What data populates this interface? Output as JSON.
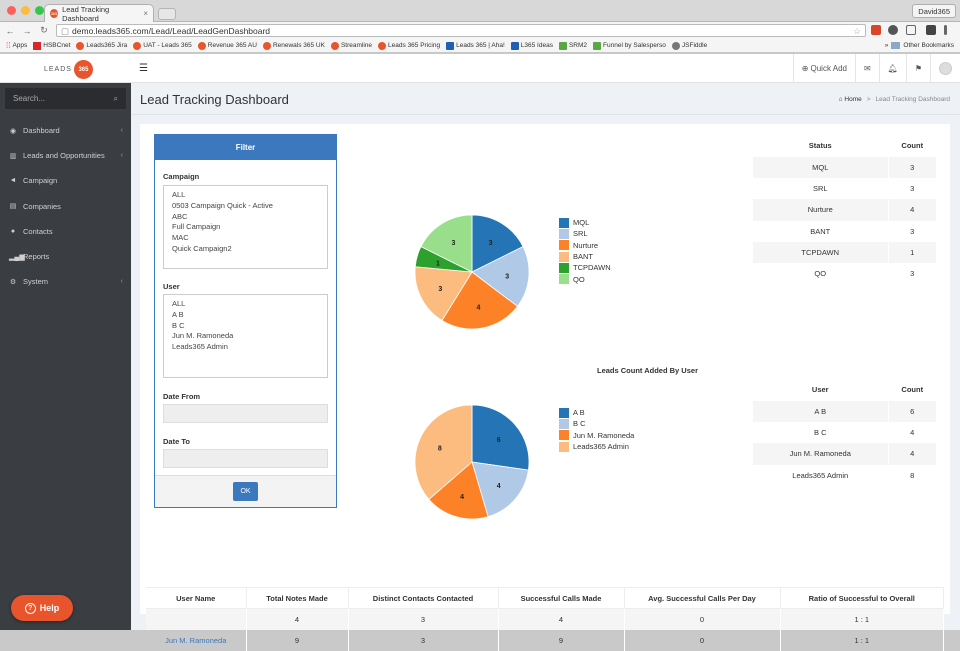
{
  "browser": {
    "tab_title": "Lead Tracking Dashboard",
    "tab_close": "×",
    "favicon_text": "365",
    "profile": "David365",
    "url": "demo.leads365.com/Lead/Lead/LeadGenDashboard",
    "bookmarks": [
      "Apps",
      "HSBCnet",
      "Leads365 Jira",
      "UAT - Leads 365",
      "Revenue 365 AU",
      "Renewals 365 UK",
      "Streamline",
      "Leads 365 Pricing",
      "Leads 365 | Aha!",
      "L365 Ideas",
      "SRM2",
      "Funnel by Salesperso",
      "JSFiddle"
    ],
    "bookmarks_more": "»",
    "other_bookmarks": "Other Bookmarks",
    "colors": {
      "close": "#fc605c",
      "minimize": "#fdbc40",
      "maximize": "#34c84a"
    }
  },
  "header": {
    "logo_text": "LEADS",
    "logo_number": "365",
    "menu_icon": "☰",
    "quick_add": "Quick Add",
    "icons": [
      "plus-circle-icon",
      "envelope-icon",
      "bell-icon",
      "flag-icon",
      "user-avatar-icon"
    ]
  },
  "sidebar": {
    "search_placeholder": "Search...",
    "items": [
      {
        "label": "Dashboard",
        "icon": "palette-icon",
        "has_chevron": true
      },
      {
        "label": "Leads and Opportunities",
        "icon": "bar-chart-icon",
        "has_chevron": true
      },
      {
        "label": "Campaign",
        "icon": "bullhorn-icon",
        "has_chevron": false
      },
      {
        "label": "Companies",
        "icon": "building-icon",
        "has_chevron": false
      },
      {
        "label": "Contacts",
        "icon": "users-icon",
        "has_chevron": false
      },
      {
        "label": "Reports",
        "icon": "signal-icon",
        "has_chevron": false
      },
      {
        "label": "System",
        "icon": "cogs-icon",
        "has_chevron": true
      }
    ],
    "chevron": "‹"
  },
  "help": {
    "label": "Help",
    "icon_text": "?"
  },
  "page": {
    "title": "Lead Tracking Dashboard",
    "breadcrumb_home": "Home",
    "breadcrumb_sep": ">",
    "breadcrumb_current": "Lead Tracking Dashboard"
  },
  "filter": {
    "title": "Filter",
    "campaign_label": "Campaign",
    "campaigns": [
      "ALL",
      "0503 Campaign Quick - Active",
      "ABC",
      "Full Campaign",
      "MAC",
      "Quick Campaign2"
    ],
    "user_label": "User",
    "users": [
      "ALL",
      "A B",
      "B C",
      "Jun M. Ramoneda",
      "Leads365 Admin"
    ],
    "date_from_label": "Date From",
    "date_to_label": "Date To",
    "date_from_value": "",
    "date_to_value": "",
    "ok_label": "OK"
  },
  "status_table": {
    "headers": [
      "Status",
      "Count"
    ],
    "rows": [
      [
        "MQL",
        "3"
      ],
      [
        "SRL",
        "3"
      ],
      [
        "Nurture",
        "4"
      ],
      [
        "BANT",
        "3"
      ],
      [
        "TCPDAWN",
        "1"
      ],
      [
        "QO",
        "3"
      ]
    ]
  },
  "user_table": {
    "title": "Leads Count Added By User",
    "headers": [
      "User",
      "Count"
    ],
    "rows": [
      [
        "A B",
        "6"
      ],
      [
        "B C",
        "4"
      ],
      [
        "Jun M. Ramoneda",
        "4"
      ],
      [
        "Leads365 Admin",
        "8"
      ]
    ]
  },
  "stats_table": {
    "headers": [
      "User Name",
      "Total Notes Made",
      "Distinct Contacts Contacted",
      "Successful Calls Made",
      "Avg. Successful Calls Per Day",
      "Ratio of Successful to Overall"
    ],
    "rows": [
      [
        "",
        "4",
        "3",
        "4",
        "0",
        "1 : 1"
      ],
      [
        "Jun M. Ramoneda",
        "9",
        "3",
        "9",
        "0",
        "1 : 1"
      ]
    ]
  },
  "chart_data": [
    {
      "type": "pie",
      "title": "",
      "labels": [
        "MQL",
        "SRL",
        "Nurture",
        "BANT",
        "TCPDAWN",
        "QO"
      ],
      "values": [
        3,
        3,
        4,
        3,
        1,
        3
      ],
      "colors": [
        "#2575b6",
        "#afc9e7",
        "#fd8127",
        "#fcbc7f",
        "#2ca12d",
        "#99df8b"
      ]
    },
    {
      "type": "pie",
      "title": "Leads Count Added By User",
      "labels": [
        "A B",
        "B C",
        "Jun M. Ramoneda",
        "Leads365 Admin"
      ],
      "values": [
        6,
        4,
        4,
        8
      ],
      "colors": [
        "#2575b6",
        "#afc9e7",
        "#fd8127",
        "#fcbc7f"
      ]
    }
  ]
}
